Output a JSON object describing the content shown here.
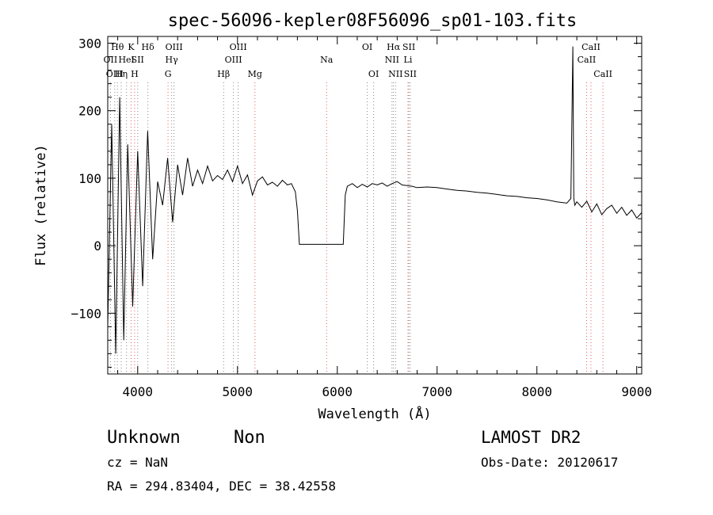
{
  "chart_data": {
    "type": "line",
    "title": "spec-56096-kepler08F56096_sp01-103.fits",
    "xlabel": "Wavelength (Å)",
    "ylabel": "Flux (relative)",
    "xlim": [
      3700,
      9050
    ],
    "ylim": [
      -190,
      310
    ],
    "xticks": [
      4000,
      5000,
      6000,
      7000,
      8000,
      9000
    ],
    "yticks": [
      -100,
      0,
      100,
      200,
      300
    ],
    "series": [
      {
        "x": [
          3700,
          3740,
          3780,
          3820,
          3860,
          3900,
          3950,
          4000,
          4050,
          4100,
          4150,
          4200,
          4250,
          4300,
          4350,
          4400,
          4450,
          4500,
          4550,
          4600,
          4650,
          4700,
          4750,
          4800,
          4850,
          4900,
          4950,
          5000,
          5050,
          5100,
          5150,
          5200,
          5250,
          5300,
          5350,
          5400,
          5450,
          5500,
          5540,
          5580,
          5600,
          5620,
          5640,
          6060,
          6080,
          6100,
          6150,
          6200,
          6250,
          6300,
          6350,
          6400,
          6450,
          6500,
          6550,
          6600,
          6650,
          6700,
          6750,
          6800,
          6900,
          7000,
          7100,
          7200,
          7300,
          7400,
          7500,
          7600,
          7700,
          7800,
          7900,
          8000,
          8100,
          8200,
          8300,
          8340,
          8360,
          8370,
          8380,
          8400,
          8450,
          8500,
          8550,
          8600,
          8650,
          8700,
          8750,
          8800,
          8850,
          8900,
          8950,
          9000,
          9050
        ],
        "y": [
          -120,
          180,
          -160,
          220,
          -140,
          150,
          -90,
          140,
          -60,
          170,
          -20,
          95,
          60,
          130,
          35,
          120,
          75,
          130,
          88,
          112,
          92,
          118,
          96,
          104,
          98,
          112,
          95,
          118,
          92,
          105,
          75,
          96,
          102,
          90,
          94,
          88,
          97,
          90,
          92,
          80,
          52,
          2,
          2,
          2,
          75,
          88,
          92,
          86,
          91,
          87,
          92,
          90,
          93,
          88,
          92,
          95,
          90,
          89,
          88,
          86,
          87,
          86,
          84,
          82,
          81,
          79,
          78,
          76,
          74,
          73,
          71,
          70,
          68,
          65,
          63,
          70,
          295,
          70,
          60,
          65,
          57,
          66,
          50,
          62,
          46,
          55,
          60,
          48,
          57,
          45,
          53,
          41,
          49
        ]
      }
    ],
    "lines": [
      {
        "x": 3727,
        "label": "OII",
        "row": 1,
        "color": "#888888"
      },
      {
        "x": 3770,
        "label": "OIII",
        "row": 2,
        "color": "#888888"
      },
      {
        "x": 3797,
        "label": "Hθ",
        "row": 0,
        "color": "#888888"
      },
      {
        "x": 3835,
        "label": "Hη",
        "row": 2,
        "color": "#888888"
      },
      {
        "x": 3888,
        "label": "HeI",
        "row": 1,
        "color": "#888888"
      },
      {
        "x": 3934,
        "label": "K",
        "row": 0,
        "color": "#e06060"
      },
      {
        "x": 3969,
        "label": "H",
        "row": 2,
        "color": "#e06060"
      },
      {
        "x": 4000,
        "label": "SII",
        "row": 1,
        "color": "#888888"
      },
      {
        "x": 4102,
        "label": "Hδ",
        "row": 0,
        "color": "#888888"
      },
      {
        "x": 4304,
        "label": "G",
        "row": 2,
        "color": "#e06060"
      },
      {
        "x": 4340,
        "label": "Hγ",
        "row": 1,
        "color": "#888888"
      },
      {
        "x": 4364,
        "label": "OIII",
        "row": 0,
        "color": "#888888"
      },
      {
        "x": 4861,
        "label": "Hβ",
        "row": 2,
        "color": "#888888"
      },
      {
        "x": 4959,
        "label": "OIII",
        "row": 1,
        "color": "#888888"
      },
      {
        "x": 5007,
        "label": "OIII",
        "row": 0,
        "color": "#888888"
      },
      {
        "x": 5175,
        "label": "Mg",
        "row": 2,
        "color": "#e06060"
      },
      {
        "x": 5893,
        "label": "Na",
        "row": 1,
        "color": "#e06060"
      },
      {
        "x": 6300,
        "label": "OI",
        "row": 0,
        "color": "#888888"
      },
      {
        "x": 6364,
        "label": "OI",
        "row": 2,
        "color": "#888888"
      },
      {
        "x": 6548,
        "label": "NII",
        "row": 1,
        "color": "#888888"
      },
      {
        "x": 6563,
        "label": "Hα",
        "row": 0,
        "color": "#888888"
      },
      {
        "x": 6584,
        "label": "NII",
        "row": 2,
        "color": "#888888"
      },
      {
        "x": 6708,
        "label": "Li",
        "row": 1,
        "color": "#e06060"
      },
      {
        "x": 6717,
        "label": "SII",
        "row": 0,
        "color": "#888888"
      },
      {
        "x": 6731,
        "label": "SII",
        "row": 2,
        "color": "#888888"
      },
      {
        "x": 8498,
        "label": "CaII",
        "row": 1,
        "color": "#e06060"
      },
      {
        "x": 8542,
        "label": "CaII",
        "row": 0,
        "color": "#e06060"
      },
      {
        "x": 8662,
        "label": "CaII",
        "row": 2,
        "color": "#e06060"
      }
    ]
  },
  "info": {
    "object_class": "Unknown",
    "object_subclass": "Non",
    "survey": "LAMOST DR2",
    "redshift": "cz = NaN",
    "obs_date": "Obs-Date: 20120617",
    "coords": "RA = 294.83404, DEC =  38.42558"
  }
}
